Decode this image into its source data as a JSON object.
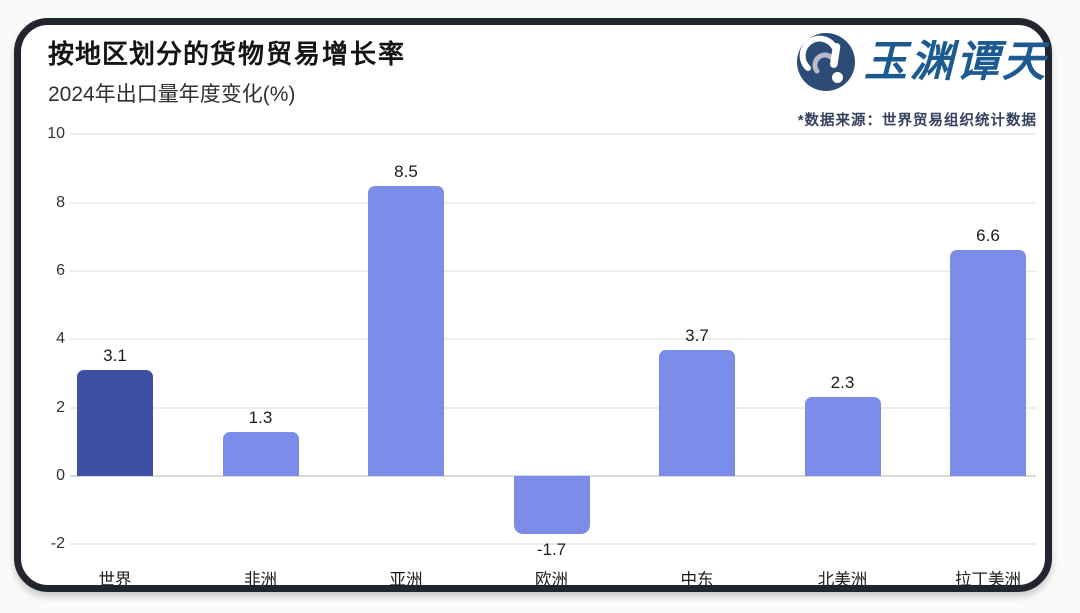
{
  "card": {
    "title_part1": "按地区划分的",
    "title_part2": "货物贸易增长率",
    "subtitle": "2024年出口量年度变化(%)",
    "logo_text": "玉渊谭天",
    "source_note": "*数据来源：世界贸易组织统计数据"
  },
  "chart_data": {
    "type": "bar",
    "title": "按地区划分的货物贸易增长率",
    "subtitle": "2024年出口量年度变化(%)",
    "categories": [
      "世界",
      "非洲",
      "亚洲",
      "欧洲",
      "中东",
      "北美洲",
      "拉丁美洲"
    ],
    "values": [
      3.1,
      1.3,
      8.5,
      -1.7,
      3.7,
      2.3,
      6.6
    ],
    "value_labels": [
      "3.1",
      "1.3",
      "8.5",
      "-1.7",
      "3.7",
      "2.3",
      "6.6"
    ],
    "bar_colors": [
      "#3D50A4",
      "#7B8DE8",
      "#7B8DE8",
      "#7B8DE8",
      "#7B8DE8",
      "#7B8DE8",
      "#7B8DE8"
    ],
    "highlight_color": "#3D50A4",
    "base_color": "#7B8DE8",
    "ylim": [
      -2,
      10
    ],
    "yticks": [
      10,
      8,
      6,
      4,
      2,
      0,
      -2
    ],
    "grid": true,
    "gridline_color": "#ececec",
    "zero_line_color": "#d9d9d9",
    "legend": "none",
    "xlabel": "",
    "ylabel": ""
  }
}
